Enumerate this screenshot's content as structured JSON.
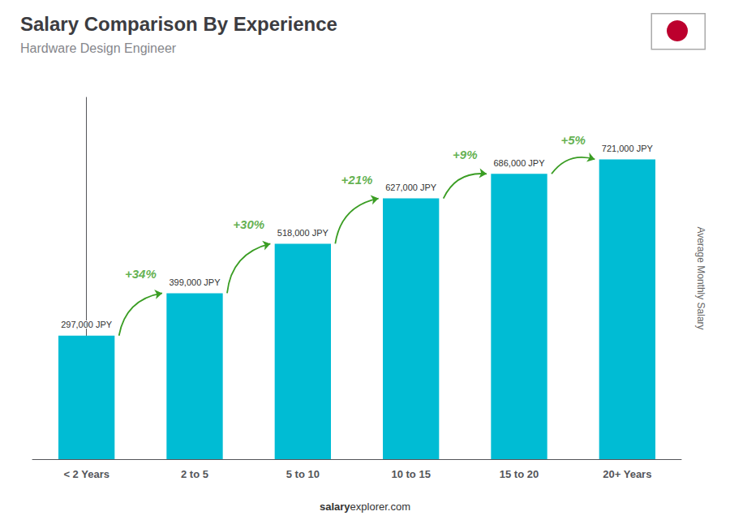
{
  "chart_data": {
    "type": "bar",
    "title": "Salary Comparison By Experience",
    "subtitle": "Hardware Design Engineer",
    "categories": [
      "< 2 Years",
      "2 to 5",
      "5 to 10",
      "10 to 15",
      "15 to 20",
      "20+ Years"
    ],
    "values": [
      297000,
      399000,
      518000,
      627000,
      686000,
      721000
    ],
    "value_labels": [
      "297,000 JPY",
      "399,000 JPY",
      "518,000 JPY",
      "627,000 JPY",
      "686,000 JPY",
      "721,000 JPY"
    ],
    "data_labels": true,
    "color": "#00bcd4",
    "ylabel": "Average Monthly Salary",
    "ylim": [
      0,
      870000
    ],
    "grid": false,
    "tick_labels": "x",
    "annotations": [
      "+34%",
      "+30%",
      "+21%",
      "+9%",
      "+5%"
    ],
    "footer": [
      "salary",
      "explorer.com"
    ]
  }
}
